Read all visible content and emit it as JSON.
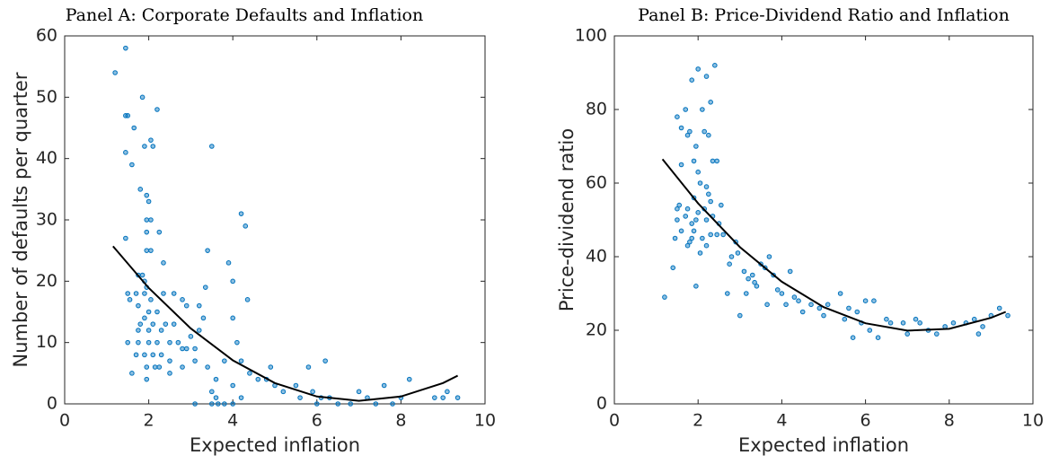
{
  "chart_data": [
    {
      "type": "scatter",
      "title": "Panel A: Corporate Defaults and Inflation",
      "x_label": "Expected inflation",
      "y_label": "Number of defaults per quarter",
      "xlim": [
        0,
        10
      ],
      "xticks": [
        0,
        2,
        4,
        6,
        8,
        10
      ],
      "ylim": [
        0,
        60
      ],
      "yticks": [
        0,
        10,
        20,
        30,
        40,
        50,
        60
      ],
      "series": [
        {
          "kind": "scatter",
          "color": "#0072bd",
          "x": [
            1.2,
            1.45,
            1.45,
            1.5,
            1.45,
            1.6,
            1.65,
            1.85,
            1.9,
            2.05,
            2.2,
            2.1,
            1.8,
            1.95,
            2.0,
            1.95,
            2.05,
            1.95,
            2.25,
            1.95,
            2.05,
            2.35,
            1.75,
            1.85,
            1.9,
            1.95,
            1.5,
            1.7,
            1.9,
            2.05,
            1.45,
            1.55,
            1.75,
            2.0,
            2.2,
            2.35,
            1.9,
            1.8,
            2.1,
            2.4,
            2.6,
            2.6,
            2.8,
            2.9,
            1.75,
            2.0,
            2.3,
            1.5,
            1.75,
            2.0,
            2.2,
            2.5,
            2.7,
            3.0,
            1.7,
            1.9,
            2.1,
            2.3,
            2.5,
            2.8,
            2.9,
            3.1,
            1.6,
            1.95,
            2.15,
            2.25,
            2.5,
            2.8,
            3.1,
            1.95,
            3.2,
            3.35,
            3.4,
            3.5,
            3.3,
            3.2,
            3.4,
            3.6,
            3.5,
            3.6,
            3.65,
            3.5,
            3.8,
            3.1,
            4.0,
            3.9,
            4.0,
            4.2,
            4.3,
            4.35,
            4.0,
            4.1,
            4.2,
            4.4,
            4.6,
            3.8,
            4.0,
            4.2,
            4.8,
            5.0,
            4.9,
            5.2,
            5.5,
            5.6,
            5.8,
            5.9,
            6.0,
            6.1,
            6.2,
            6.3,
            6.5,
            6.8,
            7.0,
            7.2,
            7.4,
            7.6,
            7.8,
            8.0,
            8.2,
            8.8,
            9.0,
            9.1,
            9.35
          ],
          "values": [
            54,
            58,
            47,
            47,
            41,
            39,
            45,
            50,
            42,
            43,
            48,
            42,
            35,
            34,
            33,
            30,
            30,
            28,
            28,
            25,
            25,
            23,
            21,
            21,
            20,
            19,
            18,
            18,
            18,
            17,
            27,
            17,
            16,
            15,
            15,
            18,
            14,
            13,
            13,
            13,
            13,
            18,
            17,
            16,
            12,
            12,
            12,
            10,
            10,
            10,
            10,
            10,
            10,
            11,
            8,
            8,
            8,
            8,
            7,
            9,
            9,
            9,
            5,
            6,
            6,
            6,
            5,
            6,
            7,
            4,
            16,
            19,
            25,
            42,
            14,
            12,
            6,
            4,
            2,
            1,
            0,
            0,
            0,
            0,
            0,
            23,
            20,
            31,
            29,
            17,
            14,
            10,
            7,
            5,
            4,
            7,
            3,
            1,
            4,
            3,
            6,
            2,
            3,
            1,
            6,
            2,
            0,
            1,
            7,
            1,
            0,
            0,
            2,
            1,
            0,
            3,
            0,
            1,
            4,
            1,
            1,
            2,
            1
          ]
        },
        {
          "kind": "line",
          "color": "#000000",
          "x": [
            1.15,
            2,
            3,
            4,
            5,
            6,
            7,
            8,
            9,
            9.35
          ],
          "values": [
            25.7,
            18.9,
            12.3,
            7.1,
            3.4,
            1.2,
            0.5,
            1.2,
            3.4,
            4.6
          ]
        }
      ]
    },
    {
      "type": "scatter",
      "title": "Panel B: Price-Dividend Ratio and Inflation",
      "x_label": "Expected inflation",
      "y_label": "Price-dividend ratio",
      "xlim": [
        0,
        10
      ],
      "xticks": [
        0,
        2,
        4,
        6,
        8,
        10
      ],
      "ylim": [
        0,
        100
      ],
      "yticks": [
        0,
        20,
        40,
        60,
        80,
        100
      ],
      "series": [
        {
          "kind": "scatter",
          "color": "#0072bd",
          "x": [
            1.2,
            1.4,
            1.45,
            1.5,
            1.5,
            1.55,
            1.6,
            1.7,
            1.75,
            1.8,
            1.85,
            1.9,
            1.9,
            1.95,
            2.0,
            1.95,
            1.75,
            1.85,
            1.6,
            1.5,
            1.6,
            1.7,
            1.75,
            1.8,
            1.85,
            1.9,
            1.95,
            2.0,
            2.0,
            2.05,
            2.1,
            2.15,
            2.2,
            2.25,
            2.3,
            2.35,
            2.4,
            2.45,
            2.2,
            2.25,
            2.3,
            2.15,
            2.2,
            2.3,
            2.35,
            2.45,
            2.5,
            2.55,
            2.6,
            2.1,
            2.05,
            2.2,
            2.7,
            2.75,
            2.8,
            2.9,
            2.95,
            3.0,
            3.1,
            3.15,
            3.2,
            3.3,
            3.35,
            3.4,
            3.5,
            3.6,
            3.65,
            3.7,
            3.8,
            3.9,
            4.0,
            4.1,
            4.2,
            4.3,
            4.4,
            4.5,
            4.7,
            4.9,
            5.0,
            5.1,
            5.4,
            5.5,
            5.6,
            5.7,
            5.8,
            5.9,
            6.0,
            6.1,
            6.2,
            6.3,
            6.5,
            6.6,
            6.9,
            7.0,
            7.2,
            7.3,
            7.5,
            7.7,
            7.9,
            8.1,
            8.4,
            8.6,
            8.7,
            8.8,
            9.0,
            9.2,
            9.4
          ],
          "values": [
            29,
            37,
            45,
            50,
            53,
            54,
            47,
            51,
            53,
            44,
            49,
            47,
            56,
            50,
            52,
            32,
            43,
            45,
            65,
            78,
            75,
            80,
            73,
            74,
            88,
            66,
            70,
            63,
            91,
            60,
            80,
            74,
            89,
            73,
            82,
            66,
            92,
            66,
            59,
            57,
            55,
            53,
            50,
            46,
            51,
            46,
            49,
            54,
            46,
            45,
            41,
            43,
            30,
            38,
            40,
            44,
            41,
            24,
            36,
            30,
            34,
            35,
            33,
            32,
            38,
            37,
            27,
            40,
            35,
            31,
            30,
            27,
            36,
            29,
            28,
            25,
            27,
            26,
            24,
            27,
            30,
            23,
            26,
            18,
            25,
            22,
            28,
            20,
            28,
            18,
            23,
            22,
            22,
            19,
            23,
            22,
            20,
            19,
            21,
            22,
            22,
            23,
            19,
            21,
            24,
            26,
            24
          ]
        },
        {
          "kind": "line",
          "color": "#000000",
          "x": [
            1.15,
            2,
            3,
            4,
            5,
            6,
            7,
            8,
            9,
            9.35
          ],
          "values": [
            66.5,
            54.5,
            42.6,
            33.2,
            26.3,
            21.9,
            19.9,
            20.4,
            23.4,
            25
          ]
        }
      ]
    }
  ]
}
